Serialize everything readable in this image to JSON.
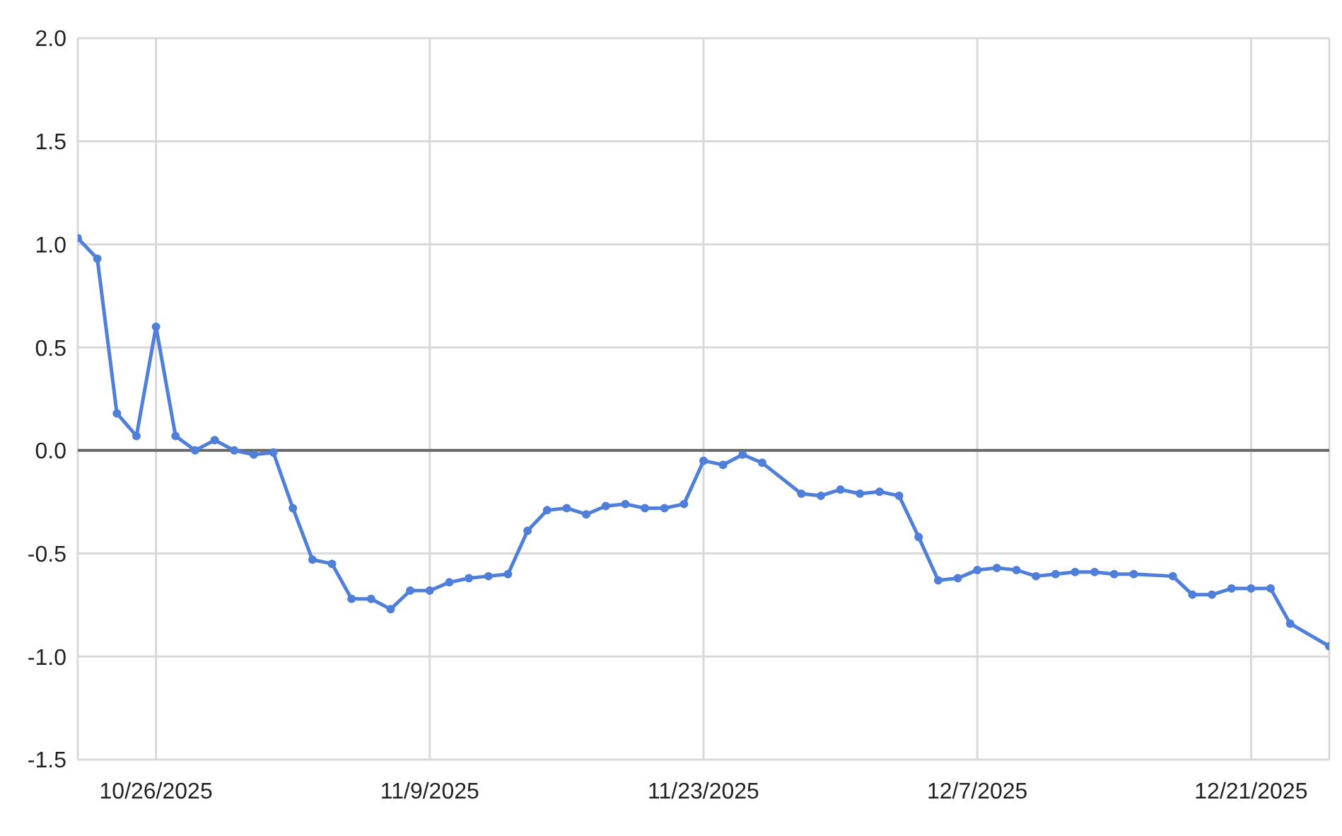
{
  "chart_data": {
    "type": "line",
    "x": [
      "2025-10-22",
      "2025-10-23",
      "2025-10-24",
      "2025-10-25",
      "2025-10-26",
      "2025-10-27",
      "2025-10-28",
      "2025-10-29",
      "2025-10-30",
      "2025-10-31",
      "2025-11-01",
      "2025-11-02",
      "2025-11-03",
      "2025-11-04",
      "2025-11-05",
      "2025-11-06",
      "2025-11-07",
      "2025-11-08",
      "2025-11-09",
      "2025-11-10",
      "2025-11-11",
      "2025-11-12",
      "2025-11-13",
      "2025-11-14",
      "2025-11-15",
      "2025-11-16",
      "2025-11-17",
      "2025-11-18",
      "2025-11-19",
      "2025-11-20",
      "2025-11-21",
      "2025-11-22",
      "2025-11-23",
      "2025-11-24",
      "2025-11-25",
      "2025-11-26",
      "2025-11-28",
      "2025-11-29",
      "2025-11-30",
      "2025-12-01",
      "2025-12-02",
      "2025-12-03",
      "2025-12-04",
      "2025-12-05",
      "2025-12-06",
      "2025-12-07",
      "2025-12-08",
      "2025-12-09",
      "2025-12-10",
      "2025-12-11",
      "2025-12-12",
      "2025-12-13",
      "2025-12-14",
      "2025-12-15",
      "2025-12-17",
      "2025-12-18",
      "2025-12-19",
      "2025-12-20",
      "2025-12-21",
      "2025-12-22",
      "2025-12-23",
      "2025-12-25"
    ],
    "series": [
      {
        "color": "#4f7fd9",
        "values": [
          1.03,
          0.93,
          0.18,
          0.07,
          0.6,
          0.07,
          0.0,
          0.05,
          0.0,
          -0.02,
          -0.01,
          -0.28,
          -0.53,
          -0.55,
          -0.72,
          -0.72,
          -0.77,
          -0.68,
          -0.68,
          -0.64,
          -0.62,
          -0.61,
          -0.6,
          -0.39,
          -0.29,
          -0.28,
          -0.31,
          -0.27,
          -0.26,
          -0.28,
          -0.28,
          -0.26,
          -0.05,
          -0.07,
          -0.02,
          -0.06,
          -0.21,
          -0.22,
          -0.19,
          -0.21,
          -0.2,
          -0.22,
          -0.42,
          -0.63,
          -0.62,
          -0.58,
          -0.57,
          -0.58,
          -0.61,
          -0.6,
          -0.59,
          -0.59,
          -0.6,
          -0.6,
          -0.61,
          -0.7,
          -0.7,
          -0.67,
          -0.67,
          -0.67,
          -0.84,
          -0.95
        ]
      }
    ],
    "xlim": [
      "2025-10-22",
      "2025-12-25"
    ],
    "xticks": [
      {
        "value": "2025-10-26",
        "label": "10/26/2025"
      },
      {
        "value": "2025-11-09",
        "label": "11/9/2025"
      },
      {
        "value": "2025-11-23",
        "label": "11/23/2025"
      },
      {
        "value": "2025-12-07",
        "label": "12/7/2025"
      },
      {
        "value": "2025-12-21",
        "label": "12/21/2025"
      }
    ],
    "ylim": [
      -1.5,
      2.0
    ],
    "yticks": [
      {
        "value": -1.5,
        "label": "-1.5"
      },
      {
        "value": -1.0,
        "label": "-1.0"
      },
      {
        "value": -0.5,
        "label": "-0.5"
      },
      {
        "value": 0,
        "label": "0.0"
      },
      {
        "value": 0.5,
        "label": "0.5"
      },
      {
        "value": 1.0,
        "label": "1.0"
      },
      {
        "value": 1.5,
        "label": "1.5"
      },
      {
        "value": 2.0,
        "label": "2.0"
      }
    ],
    "ref_lines": [
      {
        "axis": "y",
        "value": 0,
        "color": "#666666"
      }
    ],
    "grid": true,
    "marker": "circle",
    "line_style": "solid"
  }
}
